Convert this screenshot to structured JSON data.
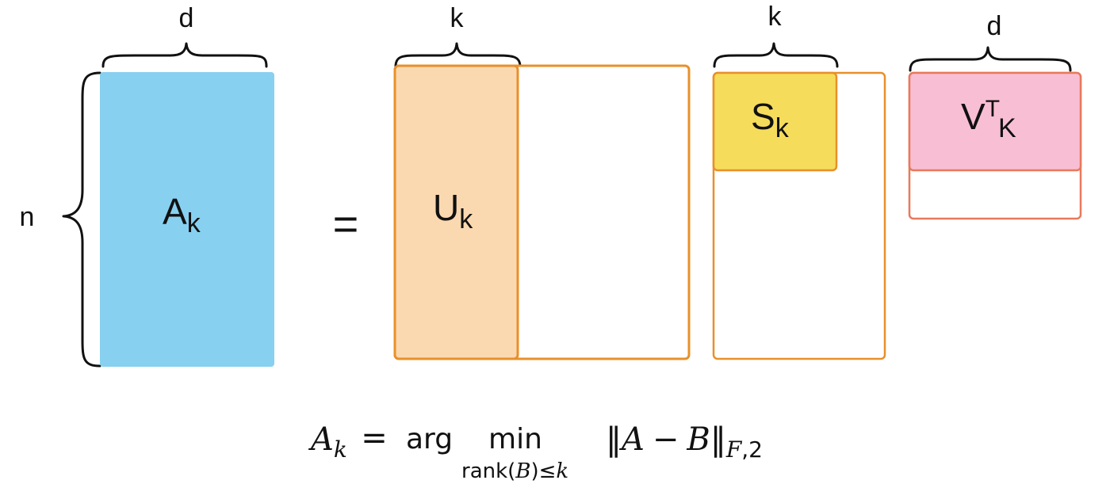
{
  "labels": {
    "d_left": "d",
    "k_u": "k",
    "k_s": "k",
    "d_right": "d",
    "n": "n",
    "equals": "="
  },
  "matrices": {
    "a": {
      "base": "A",
      "sub": "k",
      "color": "#88d0f0"
    },
    "u": {
      "base": "U",
      "sub": "k",
      "color": "#fad9b0",
      "border": "#e8902a"
    },
    "s": {
      "base": "S",
      "sub": "k",
      "color": "#f6dc5b",
      "border": "#e8902a"
    },
    "v": {
      "base": "V",
      "sup": "T",
      "sub": "K",
      "color": "#f8bfd4",
      "border": "#e8795c"
    }
  },
  "formula": {
    "lhs_base": "A",
    "lhs_sub": "k",
    "eq": "=",
    "arg": "arg",
    "min": "min",
    "under_rank": "rank",
    "under_open": "(",
    "under_b": "B",
    "under_close": ")",
    "under_leq": "≤",
    "under_k": "k",
    "norm_open": "‖",
    "norm_a": "A",
    "minus": "−",
    "norm_b": "B",
    "norm_close": "‖",
    "norm_sub_f": "F",
    "norm_sub_sep": ",",
    "norm_sub_2": "2"
  }
}
